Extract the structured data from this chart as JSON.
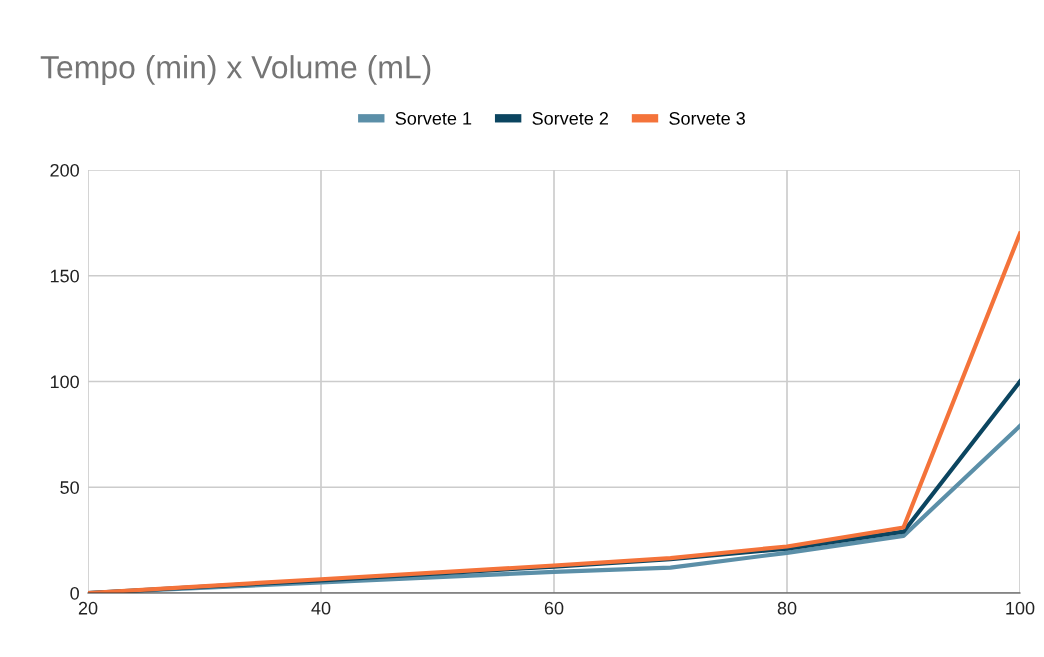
{
  "chart_data": {
    "type": "line",
    "title": "Tempo (min) x Volume (mL)",
    "x": [
      20,
      40,
      60,
      70,
      80,
      90,
      100
    ],
    "series": [
      {
        "name": "Sorvete 1",
        "color": "#5b8fa8",
        "values": [
          0,
          5,
          10,
          12,
          19,
          27,
          79
        ]
      },
      {
        "name": "Sorvete 2",
        "color": "#0b4560",
        "values": [
          0,
          6,
          12.5,
          16,
          21,
          29,
          100
        ]
      },
      {
        "name": "Sorvete 3",
        "color": "#f4733a",
        "values": [
          0,
          6.5,
          13,
          16.5,
          22,
          31,
          170
        ]
      }
    ],
    "xlim": [
      20,
      100
    ],
    "xticks": [
      20,
      40,
      60,
      80,
      100
    ],
    "ylim": [
      0,
      200
    ],
    "yticks": [
      0,
      50,
      100,
      150,
      200
    ],
    "grid": true,
    "legend": "top",
    "marker": "none",
    "line_style": "solid"
  }
}
